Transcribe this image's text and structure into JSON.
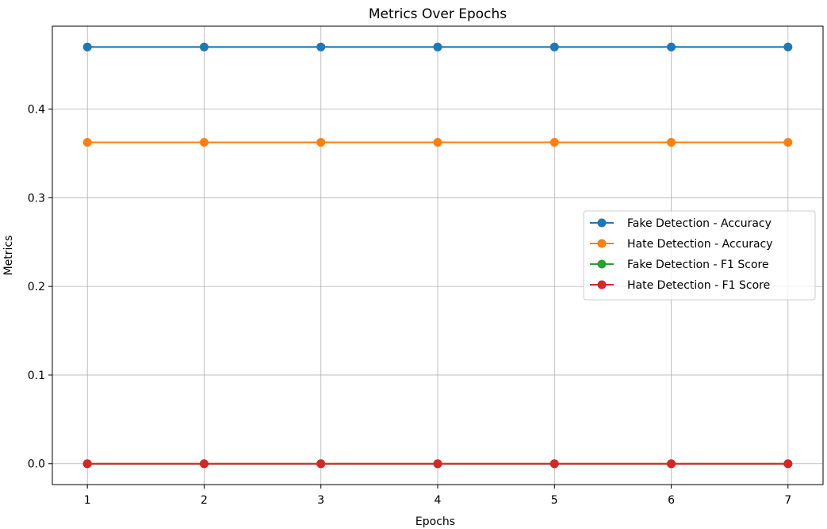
{
  "chart_data": {
    "type": "line",
    "title": "Metrics Over Epochs",
    "xlabel": "Epochs",
    "ylabel": "Metrics",
    "x": [
      1,
      2,
      3,
      4,
      5,
      6,
      7
    ],
    "xticks": [
      "1",
      "2",
      "3",
      "4",
      "5",
      "6",
      "7"
    ],
    "yticks": [
      "0.0",
      "0.1",
      "0.2",
      "0.3",
      "0.4"
    ],
    "ytick_values": [
      0.0,
      0.1,
      0.2,
      0.3,
      0.4
    ],
    "xlim": [
      0.7,
      7.3
    ],
    "ylim": [
      -0.0235,
      0.4935
    ],
    "grid": true,
    "legend_position": "center-right",
    "marker": "circle",
    "series": [
      {
        "name": "Fake Detection - Accuracy",
        "color": "#1f77b4",
        "values": [
          0.47,
          0.47,
          0.47,
          0.47,
          0.47,
          0.47,
          0.47
        ]
      },
      {
        "name": "Hate Detection - Accuracy",
        "color": "#ff7f0e",
        "values": [
          0.3625,
          0.3625,
          0.3625,
          0.3625,
          0.3625,
          0.3625,
          0.3625
        ]
      },
      {
        "name": "Fake Detection - F1 Score",
        "color": "#2ca02c",
        "values": [
          0.0,
          0.0,
          0.0,
          0.0,
          0.0,
          0.0,
          0.0
        ]
      },
      {
        "name": "Hate Detection - F1 Score",
        "color": "#d62728",
        "values": [
          0.0,
          0.0,
          0.0,
          0.0,
          0.0,
          0.0,
          0.0
        ]
      }
    ]
  }
}
